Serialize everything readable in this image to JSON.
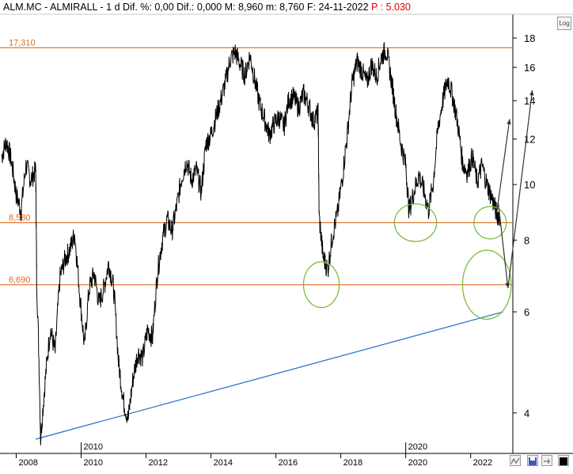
{
  "header": {
    "ticker": "ALM.MC",
    "name": "ALMIRALL",
    "interval": "1 d",
    "change_pct_label": "Dif. %:",
    "change_pct": "0,00",
    "change_label": "Dif.:",
    "change": "0,000",
    "high_label": "M:",
    "high": "8,960",
    "low_label": "m:",
    "low": "8,760",
    "date_label": "F:",
    "date": "24-11-2022",
    "price_label": "P :",
    "price": "5.030"
  },
  "log_button": "Log",
  "colors": {
    "price_line": "#000000",
    "support_lines": "#e06a22",
    "trendline": "#1f6fc6",
    "ellipses": "#7dbb3f",
    "projection": "#333333",
    "price_change": "#e00000"
  },
  "chart_data": {
    "type": "line",
    "title": "ALM.MC - ALMIRALL",
    "y_scale": "log",
    "ylim": [
      3.4,
      19.8
    ],
    "xlim": [
      2007.5,
      2023.3
    ],
    "y_ticks": [
      4,
      6,
      8,
      10,
      12,
      14,
      16,
      18
    ],
    "x_ticks": [
      2008,
      2010,
      2012,
      2014,
      2016,
      2018,
      2020,
      2022
    ],
    "x_secondary_ticks": [
      2010,
      2020
    ],
    "grid": false,
    "series": [
      {
        "values_x": [
          2007.55,
          2007.7,
          2007.85,
          2008.0,
          2008.15,
          2008.3,
          2008.45,
          2008.6,
          2008.63,
          2008.75,
          2008.9,
          2009.05,
          2009.2,
          2009.35,
          2009.5,
          2009.65,
          2009.8,
          2009.95,
          2010.1,
          2010.25,
          2010.4,
          2010.55,
          2010.7,
          2010.85,
          2011.0,
          2011.15,
          2011.3,
          2011.45,
          2011.6,
          2011.75,
          2011.9,
          2012.05,
          2012.2,
          2012.35,
          2012.5,
          2012.65,
          2012.8,
          2012.95,
          2013.1,
          2013.25,
          2013.4,
          2013.55,
          2013.7,
          2013.85,
          2014.0,
          2014.15,
          2014.3,
          2014.45,
          2014.6,
          2014.75,
          2014.9,
          2015.05,
          2015.2,
          2015.35,
          2015.5,
          2015.65,
          2015.8,
          2015.95,
          2016.1,
          2016.25,
          2016.4,
          2016.55,
          2016.7,
          2016.85,
          2017.0,
          2017.15,
          2017.3,
          2017.33,
          2017.45,
          2017.6,
          2017.75,
          2017.9,
          2018.05,
          2018.2,
          2018.35,
          2018.5,
          2018.65,
          2018.8,
          2018.95,
          2019.1,
          2019.25,
          2019.4,
          2019.55,
          2019.7,
          2019.85,
          2020.0,
          2020.1,
          2020.25,
          2020.4,
          2020.55,
          2020.7,
          2020.85,
          2021.0,
          2021.15,
          2021.3,
          2021.45,
          2021.6,
          2021.75,
          2021.9,
          2022.05,
          2022.2,
          2022.35,
          2022.5,
          2022.65,
          2022.8,
          2022.9
        ],
        "values_y": [
          11.2,
          11.9,
          11.0,
          9.6,
          9.0,
          10.8,
          10.2,
          10.6,
          6.8,
          3.6,
          4.6,
          5.6,
          5.1,
          6.9,
          7.4,
          7.7,
          8.2,
          6.5,
          5.2,
          6.6,
          7.0,
          6.2,
          6.6,
          7.3,
          6.6,
          4.9,
          4.2,
          3.9,
          4.6,
          5.1,
          5.0,
          5.6,
          5.4,
          7.0,
          8.0,
          8.7,
          8.3,
          9.2,
          10.3,
          11.0,
          10.2,
          10.6,
          9.7,
          11.8,
          12.2,
          13.1,
          14.0,
          15.1,
          16.6,
          17.0,
          16.2,
          15.5,
          16.8,
          15.2,
          13.8,
          13.0,
          12.2,
          12.8,
          13.1,
          12.6,
          14.1,
          14.2,
          13.6,
          14.4,
          13.8,
          12.9,
          13.3,
          8.8,
          7.5,
          7.1,
          8.2,
          8.9,
          10.3,
          12.2,
          15.0,
          16.4,
          15.8,
          15.0,
          16.2,
          15.4,
          16.7,
          17.2,
          15.3,
          13.3,
          11.8,
          10.8,
          9.0,
          9.7,
          10.4,
          9.8,
          9.0,
          10.1,
          12.6,
          14.1,
          15.3,
          14.2,
          12.8,
          10.9,
          10.5,
          11.2,
          10.1,
          10.8,
          10.0,
          9.5,
          8.9,
          8.8
        ]
      }
    ],
    "horizontal_lines": [
      {
        "label": "17,310",
        "value": 17.31
      },
      {
        "label": "8,580",
        "value": 8.58
      },
      {
        "label": "6,690",
        "value": 6.69
      }
    ],
    "trendline": {
      "from": [
        2008.6,
        3.6
      ],
      "to": [
        2023.0,
        6.0
      ]
    },
    "ellipses": [
      {
        "cx": 2017.4,
        "cy": 6.69,
        "rx": 0.55,
        "ry": 0.28
      },
      {
        "cx": 2020.3,
        "cy": 8.58,
        "rx": 0.65,
        "ry": 0.22
      },
      {
        "cx": 2022.6,
        "cy": 8.58,
        "rx": 0.5,
        "ry": 0.18
      },
      {
        "cx": 2022.5,
        "cy": 6.69,
        "rx": 0.75,
        "ry": 0.45
      }
    ],
    "projections": [
      [
        [
          2022.8,
          8.9
        ],
        [
          2023.2,
          13.0
        ]
      ],
      [
        [
          2022.85,
          9.3
        ],
        [
          2023.15,
          6.6
        ]
      ],
      [
        [
          2023.15,
          6.6
        ],
        [
          2023.9,
          14.6
        ]
      ]
    ]
  }
}
